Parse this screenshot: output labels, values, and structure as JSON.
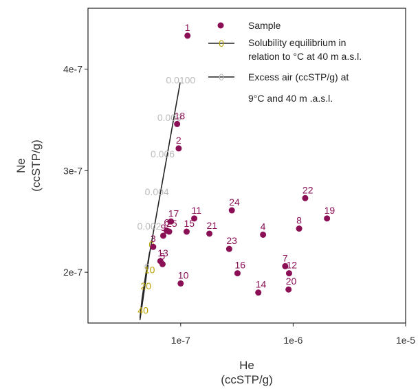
{
  "chart_data": {
    "type": "scatter",
    "x_scale": "log",
    "y_scale": "linear",
    "xlabel": "He",
    "xunit": "(ccSTP/g)",
    "ylabel": "Ne",
    "yunit": "(ccSTP/g)",
    "xlim": [
      1.5e-08,
      1e-05
    ],
    "ylim": [
      1.5e-07,
      4.6e-07
    ],
    "x_ticks": [
      {
        "value": 1e-07,
        "label": "1e-7"
      },
      {
        "value": 1e-06,
        "label": "1e-6"
      },
      {
        "value": 1e-05,
        "label": "1e-5"
      }
    ],
    "y_ticks": [
      {
        "value": 2e-07,
        "label": "2e-7"
      },
      {
        "value": 3e-07,
        "label": "3e-7"
      },
      {
        "value": 4e-07,
        "label": "4e-7"
      }
    ],
    "colors": {
      "sample": "#8a0f55",
      "solubility": "#b8a000",
      "excess_air": "#bbbbbb",
      "line": "#222222"
    },
    "legend": {
      "position": "top-right",
      "items": [
        {
          "label": "Sample",
          "marker": "dot"
        },
        {
          "label": "Solubility equilibrium in relation to °C at 40 m a.s.l.",
          "lines": [
            "Solubility equilibrium in",
            "relation to °C at 40 m a.s.l."
          ],
          "marker": "line-0-yellow"
        },
        {
          "label": "Excess air (ccSTP/g) at 9°C and 40 m .a.s.l.",
          "lines": [
            "Excess air (ccSTP/g) at",
            "9°C and 40 m .a.s.l."
          ],
          "marker": "line-0-grey"
        }
      ]
    },
    "samples": [
      {
        "label": "1",
        "x": 1.15e-07,
        "y": 4.33e-07
      },
      {
        "label": "2",
        "x": 9.6e-08,
        "y": 3.22e-07
      },
      {
        "label": "3",
        "x": 5.7e-08,
        "y": 2.25e-07
      },
      {
        "label": "4",
        "x": 5.4e-07,
        "y": 2.37e-07
      },
      {
        "label": "5",
        "x": 6.9e-08,
        "y": 2.08e-07
      },
      {
        "label": "6",
        "x": 7.5e-08,
        "y": 2.41e-07
      },
      {
        "label": "7",
        "x": 8.5e-07,
        "y": 2.06e-07
      },
      {
        "label": "8",
        "x": 1.13e-06,
        "y": 2.43e-07
      },
      {
        "label": "9",
        "x": 7e-08,
        "y": 2.36e-07
      },
      {
        "label": "10",
        "x": 1e-07,
        "y": 1.89e-07
      },
      {
        "label": "11",
        "x": 1.32e-07,
        "y": 2.53e-07
      },
      {
        "label": "12",
        "x": 9.2e-07,
        "y": 1.99e-07
      },
      {
        "label": "13",
        "x": 6.6e-08,
        "y": 2.11e-07
      },
      {
        "label": "14",
        "x": 4.9e-07,
        "y": 1.8e-07
      },
      {
        "label": "15",
        "x": 1.13e-07,
        "y": 2.4e-07
      },
      {
        "label": "16",
        "x": 3.2e-07,
        "y": 1.99e-07
      },
      {
        "label": "17",
        "x": 8.2e-08,
        "y": 2.5e-07
      },
      {
        "label": "18",
        "x": 9.3e-08,
        "y": 3.46e-07
      },
      {
        "label": "19",
        "x": 2e-06,
        "y": 2.53e-07
      },
      {
        "label": "20",
        "x": 9.1e-07,
        "y": 1.83e-07
      },
      {
        "label": "21",
        "x": 1.8e-07,
        "y": 2.38e-07
      },
      {
        "label": "22",
        "x": 1.28e-06,
        "y": 2.73e-07
      },
      {
        "label": "23",
        "x": 2.7e-07,
        "y": 2.23e-07
      },
      {
        "label": "24",
        "x": 2.85e-07,
        "y": 2.61e-07
      },
      {
        "label": "25",
        "x": 7.9e-08,
        "y": 2.4e-07
      }
    ],
    "solubility_line": {
      "x": [
        4.35e-08,
        4.55e-08,
        4.9e-08,
        5.3e-08
      ],
      "y": [
        1.55e-07,
        1.75e-07,
        1.98e-07,
        2.2e-07
      ],
      "labels": [
        {
          "text": "40",
          "x": 4.15e-08,
          "y": 1.59e-07
        },
        {
          "text": "20",
          "x": 4.4e-08,
          "y": 1.83e-07
        },
        {
          "text": "10",
          "x": 4.75e-08,
          "y": 1.99e-07
        },
        {
          "text": "0",
          "x": 5.2e-08,
          "y": 2.24e-07
        }
      ]
    },
    "excess_air_line": {
      "x": [
        4.35e-08,
        5.3e-08,
        9.9e-08
      ],
      "y": [
        1.53e-07,
        2.19e-07,
        3.87e-07
      ],
      "labels": [
        {
          "text": "0",
          "x": 4.75e-08,
          "y": 2.02e-07
        },
        {
          "text": "0.002",
          "x": 4.1e-08,
          "y": 2.42e-07
        },
        {
          "text": "0.004",
          "x": 4.8e-08,
          "y": 2.76e-07
        },
        {
          "text": "0.006",
          "x": 5.4e-08,
          "y": 3.13e-07
        },
        {
          "text": "0.008",
          "x": 6.2e-08,
          "y": 3.49e-07
        },
        {
          "text": "0.0100",
          "x": 7.4e-08,
          "y": 3.86e-07
        }
      ]
    }
  }
}
